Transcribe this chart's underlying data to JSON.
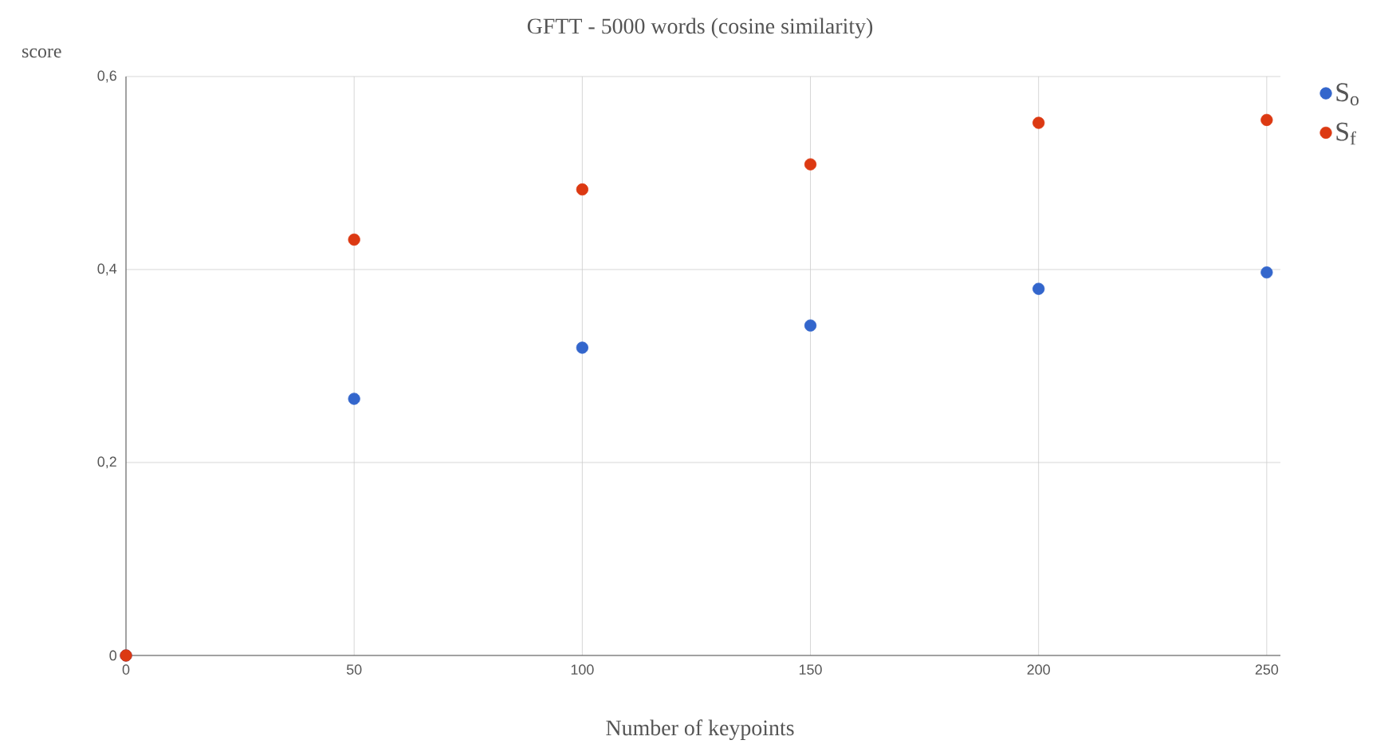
{
  "chart_data": {
    "type": "scatter",
    "title": "GFTT - 5000 words (cosine similarity)",
    "xlabel": "Number of keypoints",
    "ylabel": "score",
    "x": [
      0,
      50,
      100,
      150,
      200,
      250
    ],
    "series": [
      {
        "name": "S$_{o}$",
        "color": "#3366cc",
        "values": [
          0,
          0.266,
          0.319,
          0.342,
          0.38,
          0.397
        ]
      },
      {
        "name": "S$_{f}$",
        "color": "#dc3912",
        "values": [
          0,
          0.431,
          0.483,
          0.509,
          0.552,
          0.555
        ]
      }
    ],
    "xlim": [
      0,
      253
    ],
    "ylim": [
      0,
      0.6
    ],
    "xticks": [
      0,
      50,
      100,
      150,
      200,
      250
    ],
    "yticks": [
      0,
      {
        "value": 0.2,
        "label": "0,2"
      },
      {
        "value": 0.4,
        "label": "0,4"
      },
      {
        "value": 0.6,
        "label": "0,6"
      }
    ],
    "grid": true,
    "legend": "top right",
    "marker": "circle"
  }
}
